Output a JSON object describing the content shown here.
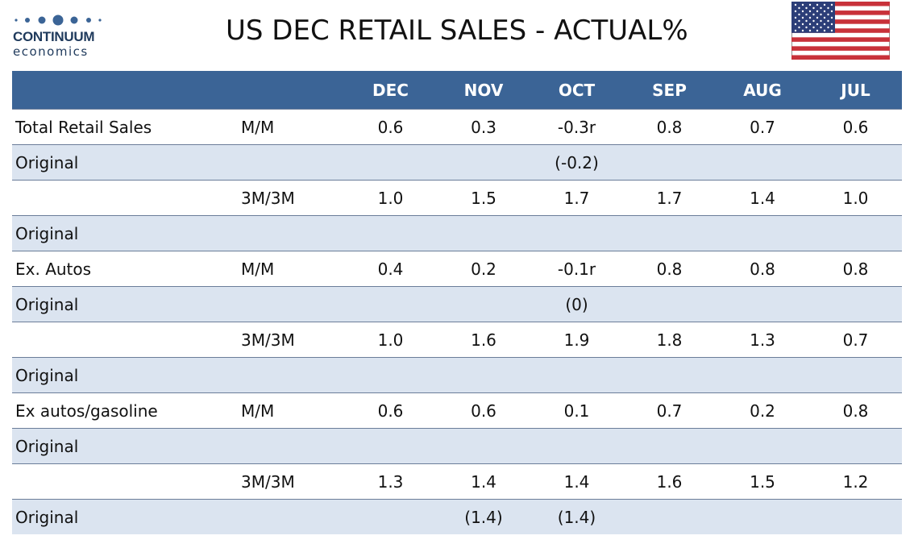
{
  "header": {
    "logo_name": "CONTINUUM",
    "logo_sub": "economics",
    "title": "US DEC RETAIL SALES - ACTUAL%"
  },
  "colors": {
    "header_bg": "#3b6496",
    "alt_row_bg": "#dbe4f0",
    "logo_blue": "#1f3a5c"
  },
  "icons": {
    "logo": "continuum-dots-logo",
    "flag": "us-flag-icon"
  },
  "table": {
    "columns": [
      "",
      "",
      "DEC",
      "NOV",
      "OCT",
      "SEP",
      "AUG",
      "JUL"
    ],
    "rows": [
      [
        "Total Retail Sales",
        "M/M",
        "0.6",
        "0.3",
        "-0.3r",
        "0.8",
        "0.7",
        "0.6"
      ],
      [
        "Original",
        "",
        "",
        "",
        "(-0.2)",
        "",
        "",
        ""
      ],
      [
        "",
        "3M/3M",
        "1.0",
        "1.5",
        "1.7",
        "1.7",
        "1.4",
        "1.0"
      ],
      [
        "Original",
        "",
        "",
        "",
        "",
        "",
        "",
        ""
      ],
      [
        "Ex. Autos",
        "M/M",
        "0.4",
        "0.2",
        "-0.1r",
        "0.8",
        "0.8",
        "0.8"
      ],
      [
        "Original",
        "",
        "",
        "",
        "(0)",
        "",
        "",
        ""
      ],
      [
        "",
        "3M/3M",
        "1.0",
        "1.6",
        "1.9",
        "1.8",
        "1.3",
        "0.7"
      ],
      [
        "Original",
        "",
        "",
        "",
        "",
        "",
        "",
        ""
      ],
      [
        "Ex autos/gasoline",
        "M/M",
        "0.6",
        "0.6",
        "0.1",
        "0.7",
        "0.2",
        "0.8"
      ],
      [
        "Original",
        "",
        "",
        "",
        "",
        "",
        "",
        ""
      ],
      [
        "",
        "3M/3M",
        "1.3",
        "1.4",
        "1.4",
        "1.6",
        "1.5",
        "1.2"
      ],
      [
        "Original",
        "",
        "",
        "(1.4)",
        "(1.4)",
        "",
        "",
        ""
      ]
    ]
  }
}
